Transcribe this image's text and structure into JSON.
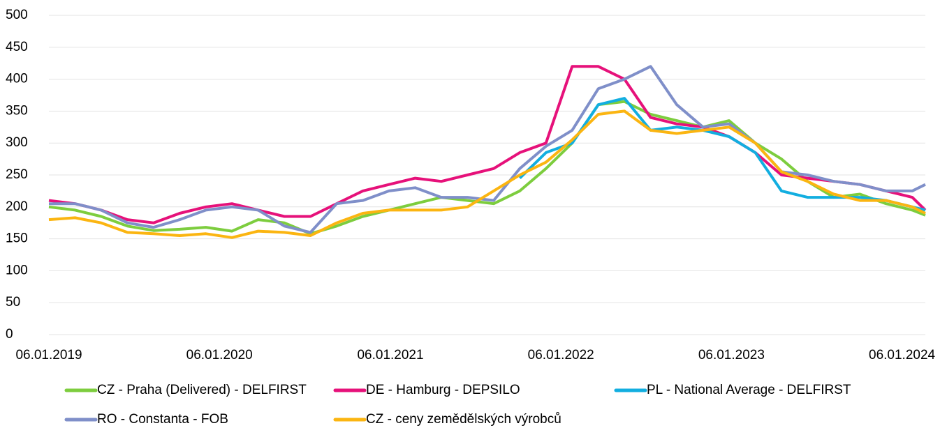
{
  "chart_data": {
    "type": "line",
    "x": [
      "06.01.2019",
      "03.03.2019",
      "28.04.2019",
      "23.06.2019",
      "18.08.2019",
      "13.10.2019",
      "08.12.2019",
      "02.02.2020",
      "29.03.2020",
      "24.05.2020",
      "19.07.2020",
      "13.09.2020",
      "08.11.2020",
      "03.01.2021",
      "28.02.2021",
      "25.04.2021",
      "20.06.2021",
      "15.08.2021",
      "10.10.2021",
      "05.12.2021",
      "30.01.2022",
      "27.03.2022",
      "22.05.2022",
      "17.07.2022",
      "11.09.2022",
      "06.11.2022",
      "01.01.2023",
      "26.02.2023",
      "23.04.2023",
      "18.06.2023",
      "13.08.2023",
      "08.10.2023",
      "03.12.2023",
      "28.01.2024",
      "25.02.2024"
    ],
    "xlim": [
      "06.01.2019",
      "25.02.2024"
    ],
    "xticks": [
      "06.01.2019",
      "06.01.2020",
      "06.01.2021",
      "06.01.2022",
      "06.01.2023",
      "06.01.2024"
    ],
    "ylim": [
      0,
      500
    ],
    "yticks": [
      0,
      50,
      100,
      150,
      200,
      250,
      300,
      350,
      400,
      450,
      500
    ],
    "grid": true,
    "legend": "bottom",
    "series": [
      {
        "name": "CZ - Praha (Delivered) - DELFIRST",
        "color": "#7dcd3e",
        "values": [
          200,
          195,
          185,
          170,
          163,
          165,
          168,
          162,
          180,
          175,
          158,
          170,
          185,
          195,
          205,
          215,
          210,
          205,
          225,
          260,
          300,
          360,
          365,
          345,
          335,
          325,
          335,
          300,
          275,
          240,
          215,
          220,
          205,
          195,
          187
        ]
      },
      {
        "name": "DE - Hamburg - DEPSILO",
        "color": "#e6117a",
        "values": [
          210,
          205,
          195,
          180,
          175,
          190,
          200,
          205,
          195,
          185,
          185,
          205,
          225,
          235,
          245,
          240,
          250,
          260,
          285,
          300,
          420,
          420,
          400,
          340,
          330,
          325,
          310,
          285,
          250,
          245,
          240,
          235,
          225,
          215,
          195
        ]
      },
      {
        "name": "PL - National Average - DELFIRST",
        "color": "#12aee0",
        "values": [
          null,
          null,
          null,
          null,
          null,
          null,
          null,
          null,
          null,
          null,
          null,
          null,
          null,
          null,
          null,
          null,
          null,
          null,
          245,
          285,
          300,
          360,
          370,
          320,
          325,
          320,
          310,
          285,
          225,
          215,
          215,
          215,
          210,
          200,
          195
        ]
      },
      {
        "name": "RO - Constanta - FOB",
        "color": "#7f8fc9",
        "values": [
          205,
          205,
          195,
          175,
          168,
          180,
          195,
          200,
          195,
          170,
          160,
          205,
          210,
          225,
          230,
          215,
          215,
          210,
          260,
          295,
          320,
          385,
          400,
          420,
          360,
          325,
          330,
          300,
          255,
          250,
          240,
          235,
          225,
          225,
          235
        ]
      },
      {
        "name": "CZ - ceny zemědělských výrobců",
        "color": "#fbb511",
        "values": [
          180,
          183,
          175,
          160,
          158,
          155,
          158,
          152,
          162,
          160,
          155,
          175,
          190,
          195,
          195,
          195,
          200,
          225,
          250,
          270,
          305,
          345,
          350,
          320,
          315,
          320,
          325,
          300,
          255,
          240,
          220,
          210,
          210,
          200,
          190
        ]
      }
    ]
  }
}
